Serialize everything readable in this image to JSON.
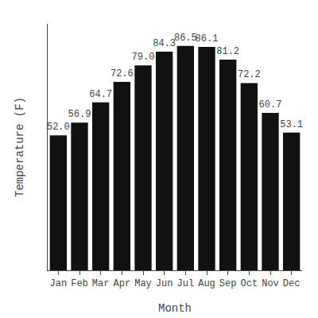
{
  "chart_data": {
    "type": "bar",
    "categories": [
      "Jan",
      "Feb",
      "Mar",
      "Apr",
      "May",
      "Jun",
      "Jul",
      "Aug",
      "Sep",
      "Oct",
      "Nov",
      "Dec"
    ],
    "values": [
      52.0,
      56.9,
      64.7,
      72.6,
      79.0,
      84.3,
      86.5,
      86.1,
      81.2,
      72.2,
      60.7,
      53.1
    ],
    "value_labels": [
      "52.0",
      "56.9",
      "64.7",
      "72.6",
      "79.0",
      "84.3",
      "86.5",
      "86.1",
      "81.2",
      "72.2",
      "60.7",
      "53.1"
    ],
    "color": "#111111",
    "xlabel": "Month",
    "ylabel": "Temperature (F)",
    "ylim": [
      0,
      95
    ],
    "data_labels": true,
    "tick_labels": "x",
    "grid": false
  }
}
